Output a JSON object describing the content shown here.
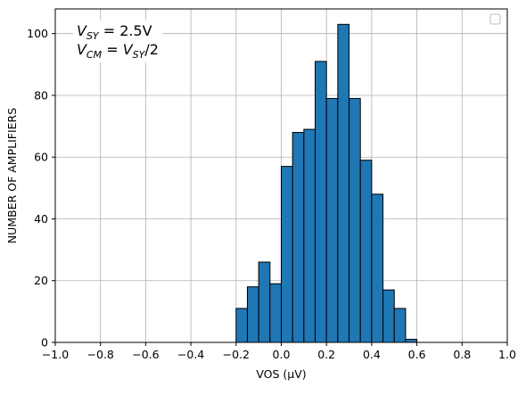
{
  "chart_data": {
    "type": "bar",
    "bin_width": 0.05,
    "bin_starts": [
      -0.2,
      -0.15,
      -0.1,
      -0.05,
      0.0,
      0.05,
      0.1,
      0.15,
      0.2,
      0.25,
      0.3,
      0.35,
      0.4,
      0.45,
      0.5,
      0.55,
      0.6
    ],
    "values": [
      11,
      18,
      26,
      19,
      57,
      68,
      69,
      91,
      79,
      103,
      79,
      59,
      48,
      17,
      11,
      1,
      0
    ],
    "xlabel": "VOS (µV)",
    "ylabel": "NUMBER OF AMPLIFIERS",
    "xlim": [
      -1.0,
      1.0
    ],
    "ylim": [
      0,
      108
    ],
    "xticks": [
      -1.0,
      -0.8,
      -0.6,
      -0.4,
      -0.2,
      0.0,
      0.2,
      0.4,
      0.6,
      0.8,
      1.0
    ],
    "xtick_labels": [
      "−1.0",
      "−0.8",
      "−0.6",
      "−0.4",
      "−0.2",
      "0.0",
      "0.2",
      "0.4",
      "0.6",
      "0.8",
      "1.0"
    ],
    "yticks": [
      0,
      20,
      40,
      60,
      80,
      100
    ],
    "ytick_labels": [
      "0",
      "20",
      "40",
      "60",
      "80",
      "100"
    ],
    "grid": true,
    "bar_color": "#1f77b4",
    "bar_edge_color": "#000000",
    "annotation": {
      "line1": {
        "v": "V",
        "sub": "SY",
        "rest": " = 2.5V"
      },
      "line2": {
        "v": "V",
        "sub": "CM",
        "eq": " = ",
        "v2": "V",
        "sub2": "SY",
        "rest": "/2"
      }
    },
    "legend": "top-right (empty)"
  }
}
